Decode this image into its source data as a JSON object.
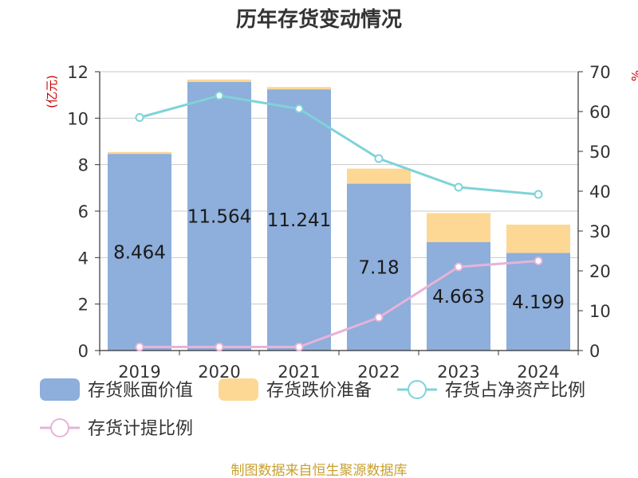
{
  "page": {
    "source_note": "制图数据来自恒生聚源数据库"
  },
  "chart_data": {
    "type": "bar",
    "title": "历年存货变动情况",
    "categories": [
      "2019",
      "2020",
      "2021",
      "2022",
      "2023",
      "2024"
    ],
    "left_axis": {
      "unit_label": "(亿元)",
      "ylim": [
        0,
        12
      ],
      "ticks": [
        0,
        2,
        4,
        6,
        8,
        10,
        12
      ]
    },
    "right_axis": {
      "unit_label": "%",
      "ylim": [
        0,
        70
      ],
      "ticks": [
        0,
        10,
        20,
        30,
        40,
        50,
        60,
        70
      ]
    },
    "grid": true,
    "legend_position": "bottom",
    "series": [
      {
        "name": "存货账面价值",
        "kind": "bar",
        "stack": "inv",
        "axis": "left",
        "color": "#8eaedb",
        "values": [
          8.464,
          11.564,
          11.241,
          7.18,
          4.663,
          4.199
        ],
        "labels": [
          "8.464",
          "11.564",
          "11.241",
          "7.18",
          "4.663",
          "4.199"
        ]
      },
      {
        "name": "存货跌价准备",
        "kind": "bar",
        "stack": "inv",
        "axis": "left",
        "color": "#fdd794",
        "values": [
          0.08,
          0.1,
          0.1,
          0.65,
          1.25,
          1.22
        ]
      },
      {
        "name": "存货占净资产比例",
        "kind": "line",
        "axis": "right",
        "color": "#7fd3d8",
        "values": [
          58.5,
          64,
          60.7,
          48.2,
          41,
          39.2
        ]
      },
      {
        "name": "存货计提比例",
        "kind": "line",
        "axis": "right",
        "color": "#e6b3d9",
        "values": [
          0.9,
          0.9,
          0.9,
          8.3,
          21,
          22.5
        ]
      }
    ]
  }
}
